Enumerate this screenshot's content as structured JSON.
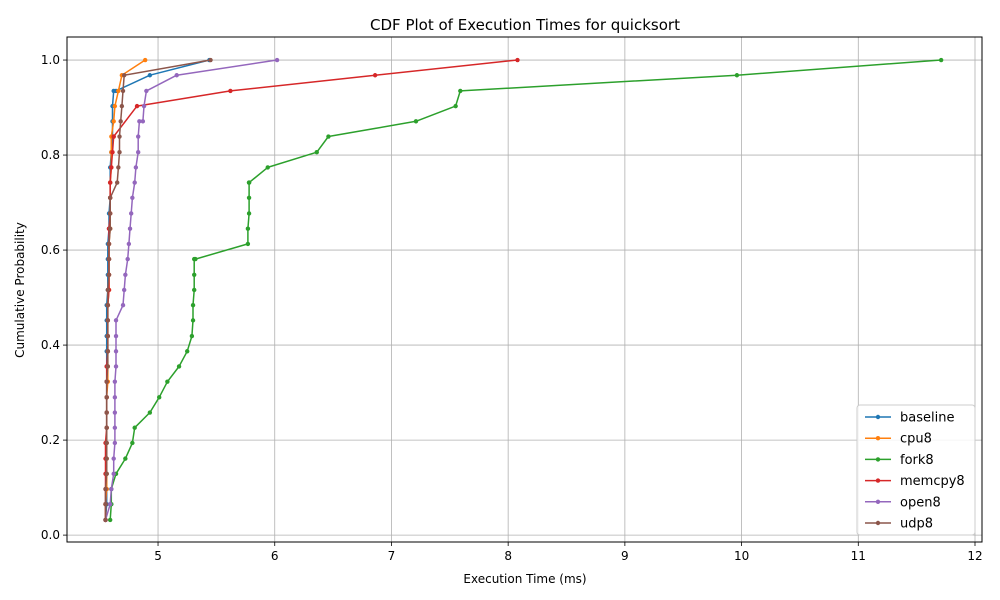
{
  "chart_data": {
    "type": "line",
    "title": "CDF Plot of Execution Times for quicksort",
    "xlabel": "Execution Time (ms)",
    "ylabel": "Cumulative Probability",
    "xlim": [
      4.22,
      12.06
    ],
    "ylim": [
      -0.0145,
      1.0485
    ],
    "xticks": [
      5,
      6,
      7,
      8,
      9,
      10,
      11,
      12
    ],
    "yticks": [
      0.0,
      0.2,
      0.4,
      0.6,
      0.8,
      1.0
    ],
    "xtick_labels": [
      "5",
      "6",
      "7",
      "8",
      "9",
      "10",
      "11",
      "12"
    ],
    "ytick_labels": [
      "0.0",
      "0.2",
      "0.4",
      "0.6",
      "0.8",
      "1.0"
    ],
    "grid": true,
    "legend_position": "lower-right",
    "series": [
      {
        "name": "baseline",
        "color": "#1f77b4",
        "x": [
          4.55,
          4.56,
          4.56,
          4.56,
          4.56,
          4.56,
          4.56,
          4.56,
          4.56,
          4.56,
          4.56,
          4.56,
          4.56,
          4.56,
          4.56,
          4.57,
          4.57,
          4.57,
          4.57,
          4.58,
          4.58,
          4.59,
          4.59,
          4.59,
          4.6,
          4.61,
          4.61,
          4.61,
          4.62,
          4.64,
          4.93,
          5.44
        ],
        "y": [
          0.032,
          0.065,
          0.097,
          0.129,
          0.161,
          0.194,
          0.226,
          0.258,
          0.29,
          0.323,
          0.355,
          0.387,
          0.419,
          0.452,
          0.484,
          0.516,
          0.548,
          0.581,
          0.613,
          0.645,
          0.677,
          0.71,
          0.742,
          0.774,
          0.806,
          0.839,
          0.871,
          0.903,
          0.935,
          0.935,
          0.968,
          1.0
        ]
      },
      {
        "name": "cpu8",
        "color": "#ff7f0e",
        "x": [
          4.55,
          4.55,
          4.56,
          4.56,
          4.56,
          4.56,
          4.56,
          4.56,
          4.56,
          4.57,
          4.57,
          4.57,
          4.57,
          4.57,
          4.57,
          4.58,
          4.58,
          4.58,
          4.58,
          4.59,
          4.59,
          4.59,
          4.59,
          4.6,
          4.6,
          4.6,
          4.62,
          4.63,
          4.66,
          4.69,
          4.89
        ],
        "y": [
          0.032,
          0.065,
          0.097,
          0.129,
          0.161,
          0.194,
          0.226,
          0.258,
          0.29,
          0.323,
          0.355,
          0.387,
          0.419,
          0.452,
          0.484,
          0.516,
          0.548,
          0.581,
          0.613,
          0.645,
          0.677,
          0.71,
          0.742,
          0.774,
          0.806,
          0.839,
          0.871,
          0.903,
          0.935,
          0.968,
          1.0
        ]
      },
      {
        "name": "fork8",
        "color": "#2ca02c",
        "x": [
          4.59,
          4.6,
          4.6,
          4.64,
          4.72,
          4.78,
          4.8,
          4.93,
          5.01,
          5.08,
          5.18,
          5.25,
          5.29,
          5.3,
          5.3,
          5.31,
          5.31,
          5.31,
          5.32,
          5.77,
          5.77,
          5.78,
          5.78,
          5.78,
          5.78,
          5.94,
          6.36,
          6.46,
          7.21,
          7.55,
          7.59,
          9.96,
          11.71
        ],
        "y": [
          0.032,
          0.065,
          0.097,
          0.129,
          0.161,
          0.194,
          0.226,
          0.258,
          0.29,
          0.323,
          0.355,
          0.387,
          0.419,
          0.452,
          0.484,
          0.516,
          0.548,
          0.581,
          0.581,
          0.613,
          0.645,
          0.677,
          0.71,
          0.742,
          0.742,
          0.774,
          0.806,
          0.839,
          0.871,
          0.903,
          0.935,
          0.968,
          1.0
        ]
      },
      {
        "name": "memcpy8",
        "color": "#d62728",
        "x": [
          4.55,
          4.55,
          4.55,
          4.55,
          4.55,
          4.55,
          4.56,
          4.56,
          4.56,
          4.56,
          4.56,
          4.57,
          4.57,
          4.57,
          4.57,
          4.58,
          4.58,
          4.58,
          4.58,
          4.58,
          4.59,
          4.59,
          4.59,
          4.6,
          4.61,
          4.62,
          4.62,
          4.82,
          5.62,
          6.86,
          8.08
        ],
        "y": [
          0.032,
          0.065,
          0.097,
          0.129,
          0.161,
          0.194,
          0.226,
          0.258,
          0.29,
          0.323,
          0.355,
          0.387,
          0.419,
          0.452,
          0.484,
          0.516,
          0.548,
          0.581,
          0.613,
          0.645,
          0.677,
          0.71,
          0.742,
          0.774,
          0.806,
          0.839,
          0.839,
          0.903,
          0.935,
          0.968,
          1.0
        ]
      },
      {
        "name": "open8",
        "color": "#9467bd",
        "x": [
          4.55,
          4.59,
          4.6,
          4.62,
          4.62,
          4.63,
          4.63,
          4.63,
          4.63,
          4.63,
          4.64,
          4.64,
          4.64,
          4.64,
          4.7,
          4.71,
          4.72,
          4.74,
          4.75,
          4.76,
          4.77,
          4.78,
          4.8,
          4.81,
          4.83,
          4.83,
          4.84,
          4.87,
          4.88,
          4.9,
          5.16,
          6.02
        ],
        "y": [
          0.032,
          0.065,
          0.097,
          0.129,
          0.161,
          0.194,
          0.226,
          0.258,
          0.29,
          0.323,
          0.355,
          0.387,
          0.419,
          0.452,
          0.484,
          0.516,
          0.548,
          0.581,
          0.613,
          0.645,
          0.677,
          0.71,
          0.742,
          0.774,
          0.806,
          0.839,
          0.871,
          0.871,
          0.903,
          0.935,
          0.968,
          1.0
        ]
      },
      {
        "name": "udp8",
        "color": "#8c564b",
        "x": [
          4.55,
          4.55,
          4.55,
          4.56,
          4.56,
          4.56,
          4.56,
          4.56,
          4.56,
          4.56,
          4.57,
          4.57,
          4.57,
          4.57,
          4.57,
          4.57,
          4.58,
          4.58,
          4.58,
          4.59,
          4.59,
          4.59,
          4.65,
          4.66,
          4.67,
          4.67,
          4.68,
          4.69,
          4.7,
          4.71,
          5.45
        ],
        "y": [
          0.032,
          0.065,
          0.097,
          0.129,
          0.161,
          0.194,
          0.226,
          0.258,
          0.29,
          0.323,
          0.355,
          0.387,
          0.419,
          0.452,
          0.484,
          0.516,
          0.548,
          0.581,
          0.613,
          0.645,
          0.677,
          0.71,
          0.742,
          0.774,
          0.806,
          0.839,
          0.871,
          0.903,
          0.935,
          0.968,
          1.0
        ]
      }
    ]
  }
}
